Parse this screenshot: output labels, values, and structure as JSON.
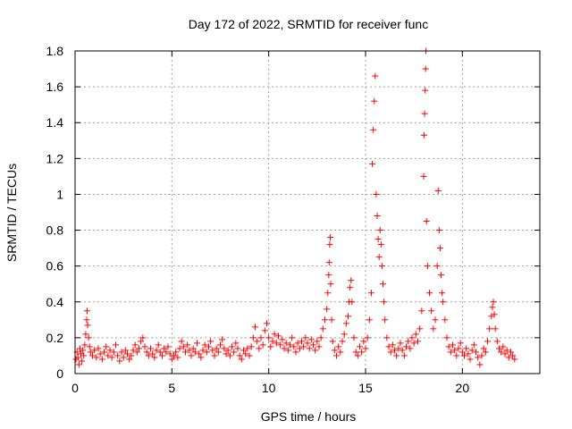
{
  "chart_data": {
    "type": "scatter",
    "title": "Day 172 of 2022, SRMTID for receiver func",
    "xlabel": "GPS time / hours",
    "ylabel": "SRMTID / TECUs",
    "xlim": [
      0,
      24
    ],
    "ylim": [
      0,
      1.8
    ],
    "xticks": [
      0,
      5,
      10,
      15,
      20
    ],
    "xtick_labels": [
      "0",
      "5",
      "10",
      "15",
      "20"
    ],
    "yticks": [
      0,
      0.2,
      0.4,
      0.6,
      0.8,
      1,
      1.2,
      1.4,
      1.6,
      1.8
    ],
    "ytick_labels": [
      "0",
      "0.2",
      "0.4",
      "0.6",
      "0.8",
      "1",
      "1.2",
      "1.4",
      "1.6",
      "1.8"
    ],
    "grid": true,
    "marker": "+",
    "color": "#ff0000",
    "series": [
      {
        "name": "SRMTID",
        "points": [
          [
            0.05,
            0.08
          ],
          [
            0.1,
            0.12
          ],
          [
            0.15,
            0.09
          ],
          [
            0.2,
            0.05
          ],
          [
            0.25,
            0.14
          ],
          [
            0.3,
            0.11
          ],
          [
            0.35,
            0.07
          ],
          [
            0.4,
            0.13
          ],
          [
            0.45,
            0.1
          ],
          [
            0.5,
            0.16
          ],
          [
            0.55,
            0.22
          ],
          [
            0.6,
            0.3
          ],
          [
            0.62,
            0.35
          ],
          [
            0.65,
            0.27
          ],
          [
            0.7,
            0.2
          ],
          [
            0.75,
            0.15
          ],
          [
            0.8,
            0.12
          ],
          [
            0.9,
            0.1
          ],
          [
            1.0,
            0.13
          ],
          [
            1.1,
            0.09
          ],
          [
            1.2,
            0.14
          ],
          [
            1.3,
            0.11
          ],
          [
            1.4,
            0.08
          ],
          [
            1.5,
            0.12
          ],
          [
            1.6,
            0.15
          ],
          [
            1.7,
            0.1
          ],
          [
            1.8,
            0.13
          ],
          [
            1.9,
            0.09
          ],
          [
            2.0,
            0.12
          ],
          [
            2.1,
            0.16
          ],
          [
            2.2,
            0.1
          ],
          [
            2.3,
            0.07
          ],
          [
            2.4,
            0.12
          ],
          [
            2.5,
            0.09
          ],
          [
            2.6,
            0.13
          ],
          [
            2.7,
            0.11
          ],
          [
            2.8,
            0.08
          ],
          [
            2.9,
            0.1
          ],
          [
            3.0,
            0.13
          ],
          [
            3.1,
            0.16
          ],
          [
            3.2,
            0.12
          ],
          [
            3.3,
            0.14
          ],
          [
            3.4,
            0.18
          ],
          [
            3.5,
            0.2
          ],
          [
            3.6,
            0.15
          ],
          [
            3.7,
            0.12
          ],
          [
            3.8,
            0.1
          ],
          [
            3.9,
            0.14
          ],
          [
            4.0,
            0.11
          ],
          [
            4.1,
            0.09
          ],
          [
            4.2,
            0.13
          ],
          [
            4.3,
            0.16
          ],
          [
            4.4,
            0.12
          ],
          [
            4.5,
            0.1
          ],
          [
            4.6,
            0.14
          ],
          [
            4.7,
            0.12
          ],
          [
            4.8,
            0.15
          ],
          [
            4.9,
            0.11
          ],
          [
            5.0,
            0.08
          ],
          [
            5.1,
            0.1
          ],
          [
            5.2,
            0.12
          ],
          [
            5.3,
            0.09
          ],
          [
            5.4,
            0.14
          ],
          [
            5.5,
            0.18
          ],
          [
            5.6,
            0.15
          ],
          [
            5.7,
            0.12
          ],
          [
            5.8,
            0.16
          ],
          [
            5.9,
            0.13
          ],
          [
            6.0,
            0.1
          ],
          [
            6.1,
            0.14
          ],
          [
            6.2,
            0.12
          ],
          [
            6.3,
            0.17
          ],
          [
            6.4,
            0.11
          ],
          [
            6.5,
            0.09
          ],
          [
            6.6,
            0.13
          ],
          [
            6.7,
            0.16
          ],
          [
            6.8,
            0.12
          ],
          [
            6.9,
            0.15
          ],
          [
            7.0,
            0.18
          ],
          [
            7.1,
            0.13
          ],
          [
            7.2,
            0.1
          ],
          [
            7.3,
            0.14
          ],
          [
            7.4,
            0.12
          ],
          [
            7.5,
            0.16
          ],
          [
            7.6,
            0.19
          ],
          [
            7.7,
            0.14
          ],
          [
            7.8,
            0.11
          ],
          [
            7.9,
            0.13
          ],
          [
            8.0,
            0.1
          ],
          [
            8.1,
            0.15
          ],
          [
            8.2,
            0.12
          ],
          [
            8.3,
            0.17
          ],
          [
            8.4,
            0.14
          ],
          [
            8.5,
            0.1
          ],
          [
            8.6,
            0.08
          ],
          [
            8.7,
            0.13
          ],
          [
            8.8,
            0.11
          ],
          [
            8.9,
            0.14
          ],
          [
            9.0,
            0.1
          ],
          [
            9.1,
            0.15
          ],
          [
            9.2,
            0.2
          ],
          [
            9.3,
            0.26
          ],
          [
            9.4,
            0.18
          ],
          [
            9.5,
            0.14
          ],
          [
            9.6,
            0.2
          ],
          [
            9.7,
            0.16
          ],
          [
            9.8,
            0.24
          ],
          [
            9.9,
            0.28
          ],
          [
            10.0,
            0.2
          ],
          [
            10.1,
            0.15
          ],
          [
            10.2,
            0.18
          ],
          [
            10.3,
            0.22
          ],
          [
            10.4,
            0.17
          ],
          [
            10.5,
            0.21
          ],
          [
            10.6,
            0.16
          ],
          [
            10.7,
            0.19
          ],
          [
            10.8,
            0.14
          ],
          [
            10.9,
            0.17
          ],
          [
            11.0,
            0.13
          ],
          [
            11.1,
            0.16
          ],
          [
            11.2,
            0.2
          ],
          [
            11.3,
            0.15
          ],
          [
            11.4,
            0.12
          ],
          [
            11.5,
            0.17
          ],
          [
            11.6,
            0.14
          ],
          [
            11.7,
            0.18
          ],
          [
            11.8,
            0.15
          ],
          [
            11.9,
            0.2
          ],
          [
            12.0,
            0.17
          ],
          [
            12.1,
            0.14
          ],
          [
            12.2,
            0.19
          ],
          [
            12.3,
            0.16
          ],
          [
            12.4,
            0.13
          ],
          [
            12.5,
            0.18
          ],
          [
            12.6,
            0.15
          ],
          [
            12.7,
            0.2
          ],
          [
            12.8,
            0.25
          ],
          [
            12.9,
            0.3
          ],
          [
            13.0,
            0.36
          ],
          [
            13.05,
            0.45
          ],
          [
            13.1,
            0.55
          ],
          [
            13.12,
            0.62
          ],
          [
            13.15,
            0.72
          ],
          [
            13.18,
            0.76
          ],
          [
            13.2,
            0.5
          ],
          [
            13.25,
            0.3
          ],
          [
            13.3,
            0.18
          ],
          [
            13.4,
            0.13
          ],
          [
            13.5,
            0.1
          ],
          [
            13.6,
            0.15
          ],
          [
            13.7,
            0.12
          ],
          [
            13.8,
            0.18
          ],
          [
            13.9,
            0.22
          ],
          [
            14.0,
            0.28
          ],
          [
            14.1,
            0.32
          ],
          [
            14.15,
            0.4
          ],
          [
            14.2,
            0.48
          ],
          [
            14.25,
            0.52
          ],
          [
            14.3,
            0.4
          ],
          [
            14.4,
            0.2
          ],
          [
            14.5,
            0.12
          ],
          [
            14.6,
            0.1
          ],
          [
            14.7,
            0.15
          ],
          [
            14.8,
            0.12
          ],
          [
            14.9,
            0.18
          ],
          [
            15.0,
            0.14
          ],
          [
            15.1,
            0.2
          ],
          [
            15.2,
            0.3
          ],
          [
            15.3,
            0.45
          ],
          [
            15.35,
            1.17
          ],
          [
            15.4,
            1.36
          ],
          [
            15.45,
            1.52
          ],
          [
            15.5,
            1.66
          ],
          [
            15.55,
            1.0
          ],
          [
            15.6,
            0.88
          ],
          [
            15.65,
            0.75
          ],
          [
            15.7,
            0.65
          ],
          [
            15.75,
            0.8
          ],
          [
            15.8,
            0.72
          ],
          [
            15.85,
            0.6
          ],
          [
            15.9,
            0.5
          ],
          [
            15.95,
            0.4
          ],
          [
            16.0,
            0.3
          ],
          [
            16.1,
            0.2
          ],
          [
            16.2,
            0.15
          ],
          [
            16.3,
            0.12
          ],
          [
            16.4,
            0.16
          ],
          [
            16.5,
            0.13
          ],
          [
            16.6,
            0.1
          ],
          [
            16.7,
            0.14
          ],
          [
            16.8,
            0.17
          ],
          [
            16.9,
            0.13
          ],
          [
            17.0,
            0.1
          ],
          [
            17.1,
            0.15
          ],
          [
            17.2,
            0.18
          ],
          [
            17.3,
            0.14
          ],
          [
            17.4,
            0.2
          ],
          [
            17.5,
            0.17
          ],
          [
            17.6,
            0.22
          ],
          [
            17.7,
            0.18
          ],
          [
            17.8,
            0.25
          ],
          [
            17.9,
            0.35
          ],
          [
            18.0,
            1.1
          ],
          [
            18.02,
            1.33
          ],
          [
            18.05,
            1.45
          ],
          [
            18.08,
            1.58
          ],
          [
            18.1,
            1.7
          ],
          [
            18.12,
            1.8
          ],
          [
            18.15,
            0.85
          ],
          [
            18.2,
            0.6
          ],
          [
            18.3,
            0.45
          ],
          [
            18.4,
            0.35
          ],
          [
            18.5,
            0.25
          ],
          [
            18.6,
            0.3
          ],
          [
            18.7,
            0.6
          ],
          [
            18.75,
            1.02
          ],
          [
            18.8,
            0.8
          ],
          [
            18.85,
            0.7
          ],
          [
            18.9,
            0.55
          ],
          [
            18.95,
            0.45
          ],
          [
            19.0,
            0.4
          ],
          [
            19.1,
            0.3
          ],
          [
            19.2,
            0.2
          ],
          [
            19.3,
            0.15
          ],
          [
            19.4,
            0.12
          ],
          [
            19.5,
            0.16
          ],
          [
            19.6,
            0.13
          ],
          [
            19.7,
            0.1
          ],
          [
            19.8,
            0.14
          ],
          [
            19.9,
            0.17
          ],
          [
            20.0,
            0.12
          ],
          [
            20.1,
            0.1
          ],
          [
            20.2,
            0.14
          ],
          [
            20.3,
            0.11
          ],
          [
            20.4,
            0.08
          ],
          [
            20.5,
            0.13
          ],
          [
            20.6,
            0.16
          ],
          [
            20.7,
            0.12
          ],
          [
            20.8,
            0.09
          ],
          [
            20.9,
            0.05
          ],
          [
            21.0,
            0.1
          ],
          [
            21.1,
            0.14
          ],
          [
            21.2,
            0.12
          ],
          [
            21.3,
            0.18
          ],
          [
            21.4,
            0.25
          ],
          [
            21.5,
            0.32
          ],
          [
            21.55,
            0.37
          ],
          [
            21.6,
            0.4
          ],
          [
            21.65,
            0.33
          ],
          [
            21.7,
            0.25
          ],
          [
            21.8,
            0.18
          ],
          [
            21.9,
            0.14
          ],
          [
            22.0,
            0.12
          ],
          [
            22.1,
            0.15
          ],
          [
            22.2,
            0.11
          ],
          [
            22.3,
            0.13
          ],
          [
            22.4,
            0.09
          ],
          [
            22.5,
            0.12
          ],
          [
            22.6,
            0.1
          ],
          [
            22.7,
            0.08
          ]
        ]
      }
    ]
  }
}
